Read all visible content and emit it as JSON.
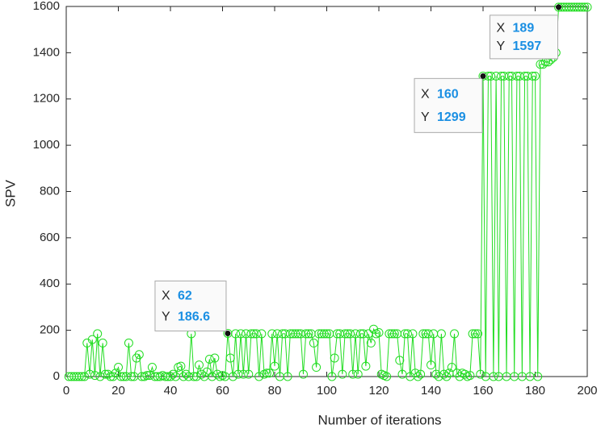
{
  "chart_data": {
    "type": "line",
    "xlabel": "Number of iterations",
    "ylabel": "SPV",
    "x": [
      1,
      2,
      3,
      4,
      5,
      6,
      7,
      8,
      9,
      10,
      11,
      12,
      13,
      14,
      15,
      16,
      17,
      18,
      19,
      20,
      21,
      22,
      23,
      24,
      25,
      26,
      27,
      28,
      29,
      30,
      31,
      32,
      33,
      34,
      35,
      36,
      37,
      38,
      39,
      40,
      41,
      42,
      43,
      44,
      45,
      46,
      47,
      48,
      49,
      50,
      51,
      52,
      53,
      54,
      55,
      56,
      57,
      58,
      59,
      60,
      61,
      62,
      63,
      64,
      65,
      66,
      67,
      68,
      69,
      70,
      71,
      72,
      73,
      74,
      75,
      76,
      77,
      78,
      79,
      80,
      81,
      82,
      83,
      84,
      85,
      86,
      87,
      88,
      89,
      90,
      91,
      92,
      93,
      94,
      95,
      96,
      97,
      98,
      99,
      100,
      101,
      102,
      103,
      104,
      105,
      106,
      107,
      108,
      109,
      110,
      111,
      112,
      113,
      114,
      115,
      116,
      117,
      118,
      119,
      120,
      121,
      122,
      123,
      124,
      125,
      126,
      127,
      128,
      129,
      130,
      131,
      132,
      133,
      134,
      135,
      136,
      137,
      138,
      139,
      140,
      141,
      142,
      143,
      144,
      145,
      146,
      147,
      148,
      149,
      150,
      151,
      152,
      153,
      154,
      155,
      156,
      157,
      158,
      159,
      160,
      161,
      162,
      163,
      164,
      165,
      166,
      167,
      168,
      169,
      170,
      171,
      172,
      173,
      174,
      175,
      176,
      177,
      178,
      179,
      180,
      181,
      182,
      183,
      184,
      185,
      186,
      187,
      188,
      189,
      190,
      191,
      192,
      193,
      194,
      195,
      196,
      197,
      198,
      199,
      200
    ],
    "series": [
      {
        "color": "#22dd22",
        "values": [
          0,
          0,
          0,
          0,
          0,
          0,
          0,
          145,
          10,
          160,
          5,
          185,
          0,
          145,
          10,
          10,
          0,
          0,
          15,
          40,
          0,
          0,
          0,
          145,
          0,
          0,
          80,
          95,
          0,
          0,
          5,
          5,
          40,
          0,
          0,
          0,
          5,
          0,
          0,
          0,
          10,
          0,
          40,
          45,
          0,
          10,
          0,
          185,
          0,
          0,
          50,
          10,
          0,
          20,
          75,
          0,
          80,
          10,
          0,
          5,
          0,
          186.6,
          80,
          0,
          185,
          10,
          185,
          10,
          185,
          10,
          185,
          185,
          185,
          0,
          185,
          10,
          15,
          15,
          185,
          45,
          185,
          0,
          185,
          185,
          0,
          185,
          185,
          185,
          185,
          185,
          10,
          185,
          185,
          185,
          145,
          40,
          185,
          185,
          185,
          185,
          185,
          0,
          80,
          185,
          185,
          10,
          185,
          185,
          185,
          10,
          185,
          10,
          185,
          185,
          45,
          185,
          145,
          205,
          185,
          190,
          10,
          5,
          0,
          185,
          185,
          185,
          185,
          70,
          10,
          185,
          185,
          0,
          185,
          15,
          0,
          10,
          185,
          185,
          185,
          50,
          185,
          10,
          0,
          185,
          10,
          0,
          15,
          40,
          185,
          15,
          0,
          15,
          10,
          0,
          5,
          185,
          185,
          185,
          10,
          1299,
          0,
          1299,
          1299,
          0,
          1299,
          0,
          1299,
          1299,
          0,
          1299,
          1299,
          0,
          1299,
          1299,
          0,
          1299,
          1299,
          0,
          1299,
          1299,
          0,
          1350,
          1350,
          1360,
          1360,
          1370,
          1380,
          1400,
          1597,
          1597,
          1597,
          1597,
          1597,
          1597,
          1597,
          1597,
          1597,
          1597,
          1597,
          1597
        ]
      }
    ],
    "xlim": [
      0,
      200
    ],
    "xticks": [
      0,
      20,
      40,
      60,
      80,
      100,
      120,
      140,
      160,
      180,
      200
    ],
    "ylim": [
      0,
      1600
    ],
    "yticks": [
      0,
      200,
      400,
      600,
      800,
      1000,
      1200,
      1400,
      1600
    ],
    "grid": false,
    "datatips": [
      {
        "x_label": "X",
        "x": 62,
        "y_label": "Y",
        "y": 186.6
      },
      {
        "x_label": "X",
        "x": 160,
        "y_label": "Y",
        "y": 1299
      },
      {
        "x_label": "X",
        "x": 189,
        "y_label": "Y",
        "y": 1597
      }
    ]
  }
}
